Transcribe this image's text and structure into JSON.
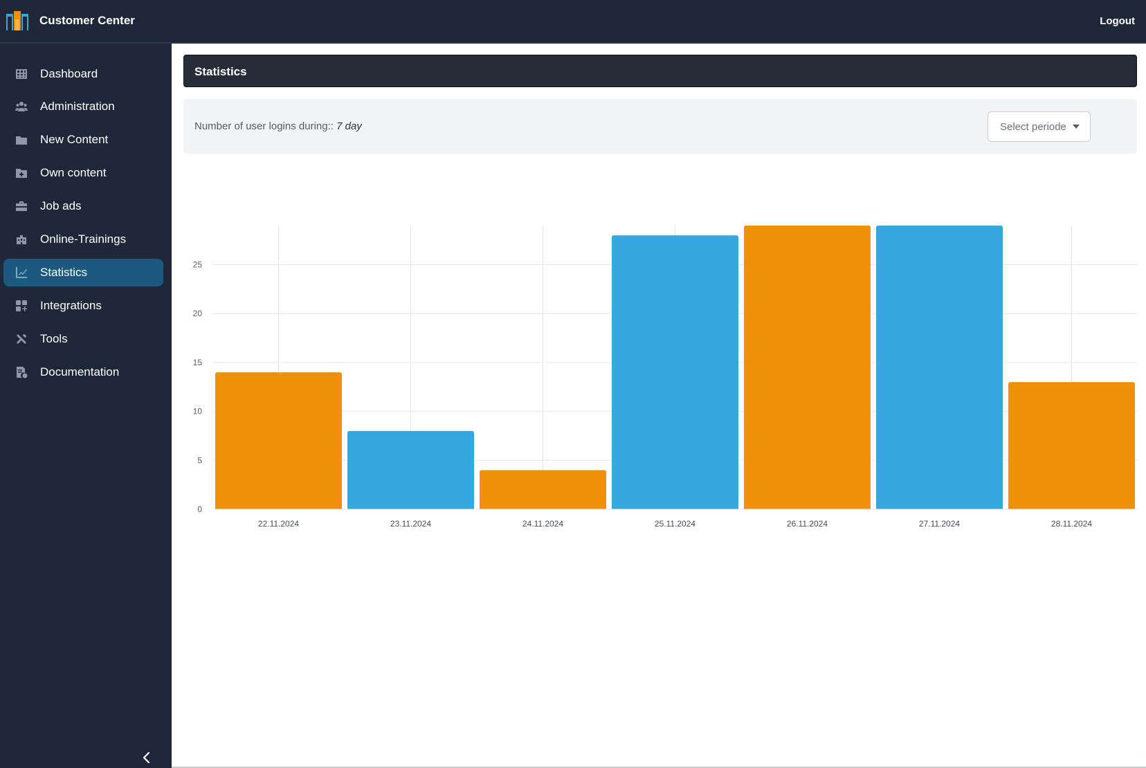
{
  "app": {
    "title": "Customer Center",
    "logout_label": "Logout"
  },
  "sidebar": {
    "items": [
      {
        "label": "Dashboard",
        "icon": "table-icon",
        "active": false
      },
      {
        "label": "Administration",
        "icon": "users-icon",
        "active": false
      },
      {
        "label": "New Content",
        "icon": "folder-icon",
        "active": false
      },
      {
        "label": "Own content",
        "icon": "folder-plus-icon",
        "active": false
      },
      {
        "label": "Job ads",
        "icon": "briefcase-icon",
        "active": false
      },
      {
        "label": "Online-Trainings",
        "icon": "school-icon",
        "active": false
      },
      {
        "label": "Statistics",
        "icon": "chart-icon",
        "active": true
      },
      {
        "label": "Integrations",
        "icon": "grid-plus-icon",
        "active": false
      },
      {
        "label": "Tools",
        "icon": "tools-icon",
        "active": false
      },
      {
        "label": "Documentation",
        "icon": "document-icon",
        "active": false
      }
    ],
    "collapse_icon": "chevron-left-icon"
  },
  "page": {
    "title": "Statistics",
    "filter_label": "Number of user logins during::",
    "filter_value": "7 day",
    "select_label": "Select periode"
  },
  "colors": {
    "orange": "#f0910a",
    "blue": "#34a8df",
    "sidebar_bg": "#1f2838",
    "active_item": "#1b5a7e"
  },
  "chart_data": {
    "type": "bar",
    "title": "",
    "xlabel": "",
    "ylabel": "",
    "categories": [
      "22.11.2024",
      "23.11.2024",
      "24.11.2024",
      "25.11.2024",
      "26.11.2024",
      "27.11.2024",
      "28.11.2024"
    ],
    "values": [
      14,
      8,
      4,
      28,
      29,
      29,
      13
    ],
    "bar_colors": [
      "#f0910a",
      "#34a8df",
      "#f0910a",
      "#34a8df",
      "#f0910a",
      "#34a8df",
      "#f0910a"
    ],
    "yticks": [
      0,
      5,
      10,
      15,
      20,
      25
    ],
    "ylim": [
      0,
      29
    ],
    "grid": true,
    "legend": "none"
  }
}
